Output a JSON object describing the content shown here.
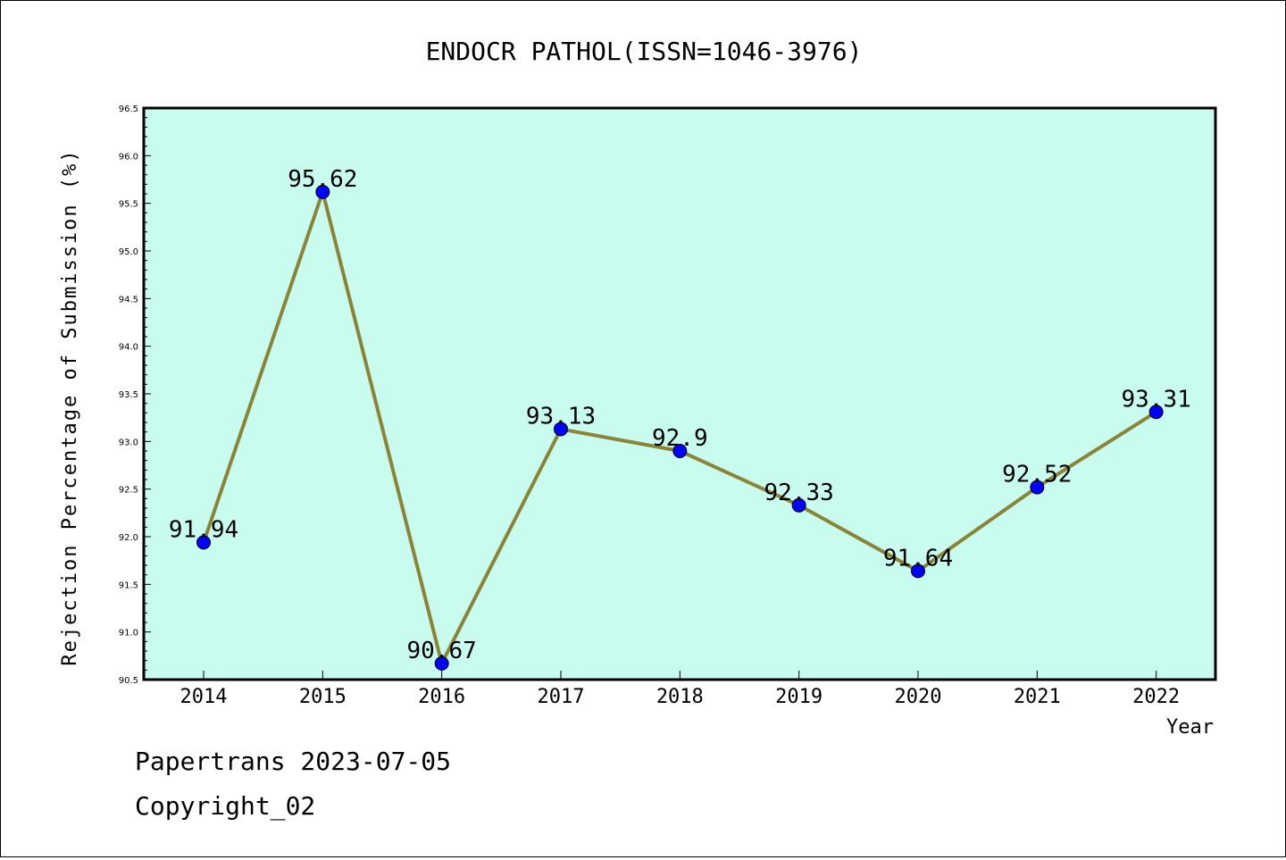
{
  "chart_data": {
    "type": "line",
    "title": "ENDOCR PATHOL(ISSN=1046-3976)",
    "xlabel": "Year",
    "ylabel": "Rejection Percentage of Submission (%)",
    "categories": [
      "2014",
      "2015",
      "2016",
      "2017",
      "2018",
      "2019",
      "2020",
      "2021",
      "2022"
    ],
    "values": [
      91.94,
      95.62,
      90.67,
      93.13,
      92.9,
      92.33,
      91.64,
      92.52,
      93.31
    ],
    "value_labels": [
      "91.94",
      "95.62",
      "90.67",
      "93.13",
      "92.9",
      "92.33",
      "91.64",
      "92.52",
      "93.31"
    ],
    "ylim": [
      90.5,
      96.5
    ],
    "yticks": [
      "90.5",
      "91.0",
      "91.5",
      "92.0",
      "92.5",
      "93.0",
      "93.5",
      "94.0",
      "94.5",
      "95.0",
      "95.5",
      "96.0",
      "96.5"
    ],
    "grid": false,
    "colors": {
      "plot_background": "#c8fcee",
      "line": "#8b8336",
      "marker": "#0000ff"
    }
  },
  "footer": {
    "line1": "Papertrans 2023-07-05",
    "line2": "Copyright_02"
  }
}
